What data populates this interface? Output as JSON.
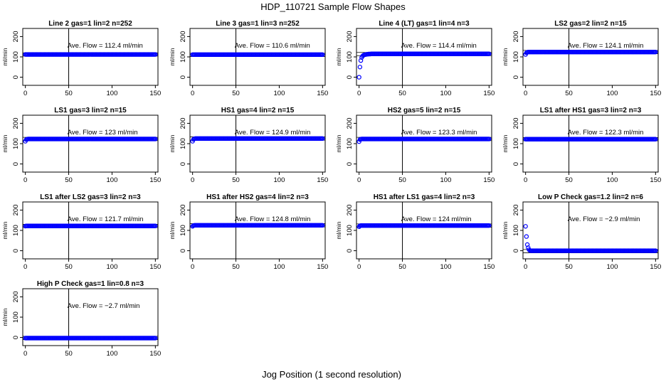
{
  "chart_data": {
    "type": "scatter",
    "title": "HDP_110721  Sample Flow Shapes",
    "xlabel": "Jog Position (1 second resolution)",
    "ylabel": "ml/min",
    "xticks": [
      0,
      50,
      100,
      150
    ],
    "yticks": [
      0,
      100,
      200
    ],
    "xlim": [
      -3,
      153
    ],
    "ylim": [
      -40,
      240
    ],
    "vline_x": 50,
    "annotation_prefix": "Ave. Flow = ",
    "annotation_suffix": "ml/min",
    "marker_color": "#0000ff",
    "panels": [
      {
        "title": "Line 2 gas=1 lin=2 n=252",
        "ave": 112.4,
        "ave_text": "112.4",
        "band": [
          104,
          120
        ],
        "values": [
          112,
          112,
          112,
          112,
          112,
          112,
          112
        ]
      },
      {
        "title": "Line 3 gas=1 lin=3 n=252",
        "ave": 110.6,
        "ave_text": "110.6",
        "band": [
          102,
          118
        ],
        "values": [
          111,
          111,
          111,
          111,
          111,
          111,
          111
        ]
      },
      {
        "title": "Line 4 (LT) gas=1 lin=4 n=3",
        "ave": 114.4,
        "ave_text": "114.4",
        "band": [
          106,
          122
        ],
        "values": [
          0,
          50,
          82,
          97,
          104,
          108,
          110,
          111,
          112,
          113,
          113,
          114,
          114,
          114,
          115
        ]
      },
      {
        "title": "LS2 gas=2 lin=2 n=15",
        "ave": 124.1,
        "ave_text": "124.1",
        "band": [
          116,
          132
        ],
        "values": [
          112,
          120,
          123,
          124,
          124,
          124,
          124
        ]
      },
      {
        "title": "LS1 gas=3 lin=2 n=15",
        "ave": 123,
        "ave_text": "123",
        "band": [
          115,
          131
        ],
        "values": [
          112,
          120,
          122,
          123,
          123,
          123,
          123
        ]
      },
      {
        "title": "HS1 gas=4 lin=2 n=15",
        "ave": 124.9,
        "ave_text": "124.9",
        "band": [
          117,
          133
        ],
        "values": [
          112,
          121,
          124,
          125,
          125,
          125,
          125
        ]
      },
      {
        "title": "HS2 gas=5 lin=2 n=15",
        "ave": 123.3,
        "ave_text": "123.3",
        "band": [
          115,
          131
        ],
        "values": [
          110,
          120,
          122,
          123,
          123,
          123,
          123
        ]
      },
      {
        "title": "LS1 after HS1 gas=3 lin=2 n=3",
        "ave": 122.3,
        "ave_text": "122.3",
        "band": [
          114,
          130
        ],
        "values": [
          122,
          122,
          122,
          122,
          122,
          122,
          122
        ]
      },
      {
        "title": "LS1 after LS2 gas=3 lin=2 n=3",
        "ave": 121.7,
        "ave_text": "121.7",
        "band": [
          114,
          130
        ],
        "values": [
          121,
          122,
          122,
          122,
          122,
          122,
          122
        ]
      },
      {
        "title": "HS1 after HS2 gas=4 lin=2 n=3",
        "ave": 124.8,
        "ave_text": "124.8",
        "band": [
          117,
          133
        ],
        "values": [
          120,
          124,
          125,
          125,
          125,
          125,
          125
        ]
      },
      {
        "title": "HS1 after LS1 gas=4 lin=2 n=3",
        "ave": 124,
        "ave_text": "124",
        "band": [
          116,
          132
        ],
        "values": [
          118,
          123,
          124,
          124,
          124,
          124,
          124
        ]
      },
      {
        "title": "Low P Check gas=1.2 lin=2 n=6",
        "ave": -2.9,
        "ave_text": "−2.9",
        "band": [
          -10,
          6
        ],
        "values": [
          120,
          70,
          30,
          15,
          5,
          1,
          0,
          0,
          0,
          0,
          0,
          0,
          0,
          0,
          0
        ]
      },
      {
        "title": "High P Check gas=1 lin=0.8 n=3",
        "ave": -2.7,
        "ave_text": "−2.7",
        "band": [
          -10,
          6
        ],
        "values": [
          -3,
          -3,
          -3,
          -3,
          -3,
          -3,
          -3
        ]
      }
    ]
  }
}
